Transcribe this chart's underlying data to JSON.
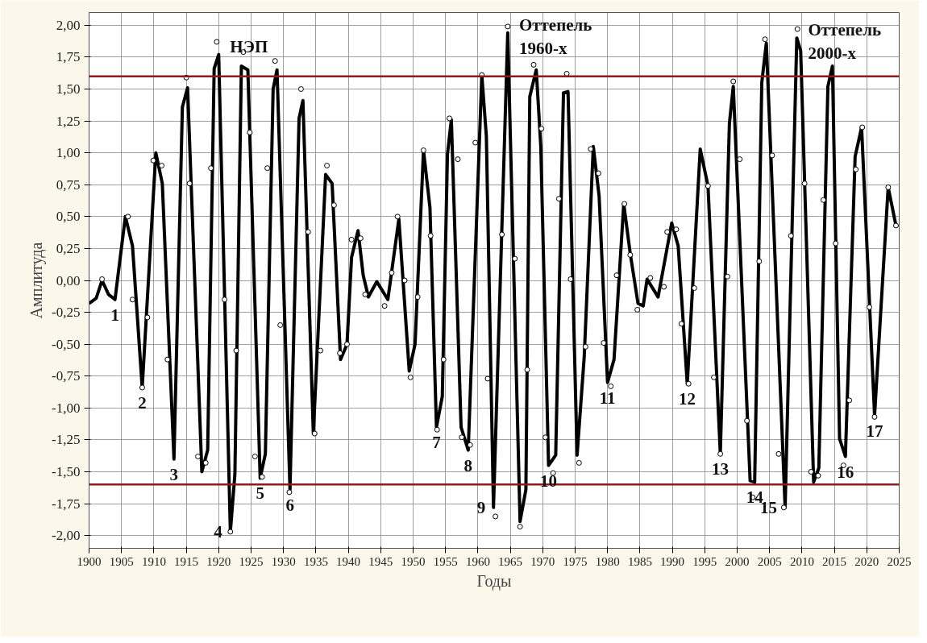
{
  "chart_data": {
    "type": "line",
    "xlabel": "Годы",
    "ylabel": "Амплитуда",
    "xlim": [
      1900,
      2025
    ],
    "ylim": [
      -2.1,
      2.1
    ],
    "xticks": [
      1900,
      1905,
      1910,
      1915,
      1920,
      1925,
      1930,
      1935,
      1940,
      1945,
      1950,
      1955,
      1960,
      1965,
      1970,
      1975,
      1980,
      1985,
      1990,
      1995,
      2000,
      2005,
      2010,
      2015,
      2020,
      2025
    ],
    "yticks": [
      {
        "value": -2,
        "label": "-2,00"
      },
      {
        "value": -1.75,
        "label": "-1,75"
      },
      {
        "value": -1.5,
        "label": "-1,50"
      },
      {
        "value": -1.25,
        "label": "-1,25"
      },
      {
        "value": -1,
        "label": "-1,00"
      },
      {
        "value": -0.75,
        "label": "-0,75"
      },
      {
        "value": -0.5,
        "label": "-0,50"
      },
      {
        "value": -0.25,
        "label": "-0,25"
      },
      {
        "value": 0,
        "label": "0,00"
      },
      {
        "value": 0.25,
        "label": "0,25"
      },
      {
        "value": 0.5,
        "label": "0,50"
      },
      {
        "value": 0.75,
        "label": "0,75"
      },
      {
        "value": 1,
        "label": "1,00"
      },
      {
        "value": 1.25,
        "label": "1,25"
      },
      {
        "value": 1.5,
        "label": "1,50"
      },
      {
        "value": 1.75,
        "label": "1,75"
      },
      {
        "value": 2,
        "label": "2,00"
      }
    ],
    "grid": true,
    "line_style": "solid",
    "series": [
      {
        "color": "#000000",
        "marker": "none",
        "x": [
          1900.0,
          1901.1,
          1902.0,
          1903.0,
          1904.0,
          1905.6,
          1906.7,
          1908.2,
          1910.3,
          1911.3,
          1913.1,
          1914.4,
          1915.2,
          1917.4,
          1918.3,
          1919.3,
          1920.0,
          1921.8,
          1922.5,
          1923.5,
          1924.5,
          1926.4,
          1927.2,
          1928.4,
          1929.0,
          1931.0,
          1932.4,
          1933.0,
          1934.6,
          1936.5,
          1937.5,
          1938.8,
          1939.8,
          1940.5,
          1941.5,
          1942.3,
          1943.1,
          1944.4,
          1946.1,
          1947.8,
          1949.4,
          1950.3,
          1951.6,
          1952.6,
          1953.6,
          1954.5,
          1955.3,
          1955.9,
          1957.4,
          1958.5,
          1960.6,
          1961.3,
          1962.4,
          1964.6,
          1966.5,
          1967.4,
          1968.0,
          1969.0,
          1969.7,
          1970.9,
          1972.0,
          1973.2,
          1973.9,
          1975.3,
          1976.4,
          1977.8,
          1978.7,
          1980.0,
          1981.0,
          1982.5,
          1983.5,
          1984.7,
          1985.5,
          1986.1,
          1987.8,
          1989.9,
          1990.9,
          1992.3,
          1994.3,
          1995.5,
          1997.4,
          1998.8,
          1999.4,
          2002.0,
          2002.7,
          2003.8,
          2004.5,
          2007.4,
          2009.2,
          2009.8,
          2011.8,
          2012.6,
          2014.0,
          2014.7,
          2015.8,
          2016.7,
          2018.2,
          2019.2,
          2021.2,
          2023.3,
          2024.5
        ],
        "values": [
          -0.18,
          -0.14,
          0.0,
          -0.11,
          -0.15,
          0.5,
          0.27,
          -0.84,
          1.0,
          0.76,
          -1.4,
          1.36,
          1.51,
          -1.5,
          -1.33,
          1.66,
          1.77,
          -1.97,
          -1.52,
          1.68,
          1.65,
          -1.55,
          -1.36,
          1.5,
          1.65,
          -1.64,
          1.27,
          1.41,
          -1.2,
          0.83,
          0.76,
          -0.62,
          -0.5,
          0.18,
          0.39,
          0.04,
          -0.13,
          -0.01,
          -0.15,
          0.48,
          -0.71,
          -0.5,
          1.02,
          0.57,
          -1.15,
          -0.91,
          0.99,
          1.26,
          -1.15,
          -1.33,
          1.61,
          1.13,
          -1.78,
          1.94,
          -1.89,
          -1.64,
          1.44,
          1.65,
          1.05,
          -1.45,
          -1.37,
          1.47,
          1.48,
          -1.37,
          -0.6,
          1.05,
          0.66,
          -0.8,
          -0.62,
          0.6,
          0.21,
          -0.18,
          -0.2,
          0.01,
          -0.13,
          0.45,
          0.27,
          -0.81,
          1.03,
          0.74,
          -1.36,
          1.23,
          1.52,
          -1.57,
          -1.58,
          1.55,
          1.86,
          -1.78,
          1.9,
          1.8,
          -1.58,
          -1.47,
          1.52,
          1.68,
          -1.24,
          -1.38,
          0.97,
          1.2,
          -1.06,
          0.73,
          0.43
        ]
      },
      {
        "type": "scatter",
        "color": "#000000",
        "marker": "circle",
        "x": [
          1902.0,
          1906.0,
          1906.7,
          1908.2,
          1909.0,
          1909.9,
          1911.2,
          1912.1,
          1915.0,
          1915.5,
          1916.8,
          1918.0,
          1918.8,
          1919.7,
          1920.9,
          1921.8,
          1922.7,
          1923.8,
          1924.8,
          1925.6,
          1926.7,
          1927.5,
          1928.7,
          1929.5,
          1930.9,
          1932.7,
          1933.8,
          1934.8,
          1935.7,
          1936.7,
          1937.8,
          1938.7,
          1939.8,
          1940.5,
          1941.9,
          1942.6,
          1945.6,
          1946.7,
          1947.6,
          1948.7,
          1949.6,
          1950.7,
          1951.6,
          1952.7,
          1953.7,
          1954.7,
          1955.6,
          1956.9,
          1957.5,
          1958.8,
          1959.6,
          1960.6,
          1961.5,
          1962.7,
          1963.7,
          1964.6,
          1965.7,
          1966.5,
          1967.6,
          1968.6,
          1969.8,
          1970.4,
          1971.6,
          1972.5,
          1973.7,
          1974.3,
          1975.6,
          1976.6,
          1977.4,
          1978.6,
          1979.4,
          1980.5,
          1981.4,
          1982.6,
          1983.5,
          1984.6,
          1986.6,
          1988.7,
          1989.2,
          1990.6,
          1991.4,
          1992.5,
          1993.4,
          1995.5,
          1996.4,
          1997.4,
          1998.5,
          1999.4,
          2000.4,
          2001.5,
          2002.4,
          2003.4,
          2004.3,
          2005.4,
          2006.4,
          2007.2,
          2008.3,
          2009.3,
          2010.4,
          2011.4,
          2012.5,
          2013.3,
          2015.2,
          2016.4,
          2017.3,
          2018.3,
          2019.3,
          2020.4,
          2021.2,
          2023.3,
          2024.5
        ],
        "values": [
          0.01,
          0.5,
          -0.15,
          -0.84,
          -0.29,
          0.94,
          0.9,
          -0.62,
          1.59,
          0.76,
          -1.38,
          -1.43,
          0.88,
          1.87,
          -0.15,
          -1.97,
          -0.55,
          1.79,
          1.16,
          -1.38,
          -1.54,
          0.88,
          1.72,
          -0.35,
          -1.66,
          1.5,
          0.38,
          -1.2,
          -0.55,
          0.9,
          0.59,
          -0.57,
          -0.5,
          0.32,
          0.33,
          -0.11,
          -0.2,
          0.06,
          0.5,
          0.0,
          -0.76,
          -0.13,
          1.02,
          0.35,
          -1.17,
          -0.62,
          1.27,
          0.95,
          -1.23,
          -1.29,
          1.08,
          1.61,
          -0.77,
          -1.85,
          0.36,
          1.99,
          0.17,
          -1.93,
          -0.7,
          1.69,
          1.19,
          -1.23,
          -1.51,
          0.64,
          1.62,
          0.01,
          -1.43,
          -0.52,
          1.03,
          0.84,
          -0.49,
          -0.83,
          0.04,
          0.6,
          0.2,
          -0.23,
          0.02,
          -0.05,
          0.38,
          0.4,
          -0.34,
          -0.81,
          -0.06,
          0.74,
          -0.76,
          -1.36,
          0.03,
          1.56,
          0.95,
          -1.1,
          -1.7,
          0.15,
          1.89,
          0.98,
          -1.36,
          -1.78,
          0.35,
          1.97,
          0.76,
          -1.5,
          -1.53,
          0.63,
          0.29,
          -1.45,
          -0.94,
          0.87,
          1.2,
          -0.21,
          -1.07,
          0.73,
          0.43
        ]
      }
    ],
    "ref_lines": [
      {
        "axis": "y",
        "value": 1.6,
        "color": "#8b1a1a"
      },
      {
        "axis": "y",
        "value": -1.6,
        "color": "#8b1a1a"
      }
    ],
    "annotations": [
      {
        "text": "НЭП",
        "x": 1920.0,
        "y": 1.77
      },
      {
        "text": "Оттепель\n1960-х",
        "x": 1964.6,
        "y": 1.94
      },
      {
        "text": "Оттепель\n2000-х",
        "x": 2009.2,
        "y": 1.9
      },
      {
        "text": "1",
        "x": 1904.0,
        "y": -0.15
      },
      {
        "text": "2",
        "x": 1908.2,
        "y": -0.84
      },
      {
        "text": "3",
        "x": 1913.1,
        "y": -1.4
      },
      {
        "text": "4",
        "x": 1921.8,
        "y": -1.97
      },
      {
        "text": "5",
        "x": 1926.4,
        "y": -1.55
      },
      {
        "text": "6",
        "x": 1931.0,
        "y": -1.64
      },
      {
        "text": "7",
        "x": 1953.6,
        "y": -1.15
      },
      {
        "text": "8",
        "x": 1958.5,
        "y": -1.33
      },
      {
        "text": "9",
        "x": 1962.4,
        "y": -1.78
      },
      {
        "text": "10",
        "x": 1970.9,
        "y": -1.45
      },
      {
        "text": "11",
        "x": 1980.0,
        "y": -0.8
      },
      {
        "text": "12",
        "x": 1992.3,
        "y": -0.81
      },
      {
        "text": "13",
        "x": 1997.4,
        "y": -1.36
      },
      {
        "text": "14",
        "x": 2002.7,
        "y": -1.58
      },
      {
        "text": "15",
        "x": 2007.4,
        "y": -1.78
      },
      {
        "text": "16",
        "x": 2016.7,
        "y": -1.38
      },
      {
        "text": "17",
        "x": 2021.2,
        "y": -1.06
      }
    ]
  }
}
